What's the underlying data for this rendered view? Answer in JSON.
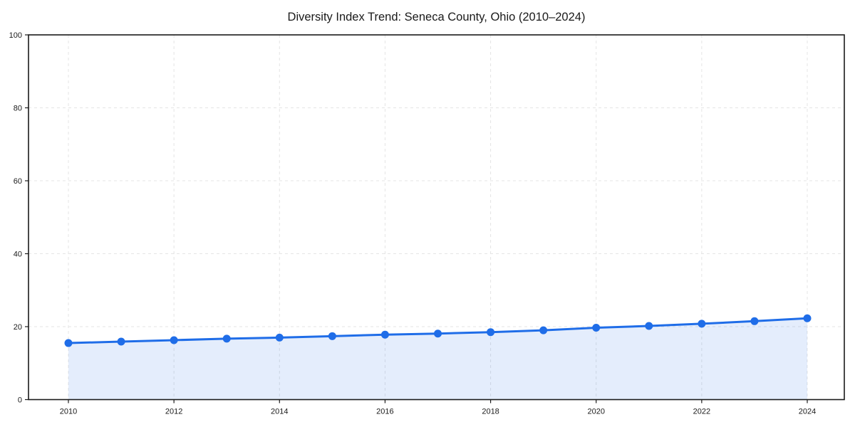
{
  "figure": {
    "background": "#ffffff"
  },
  "chart_data": {
    "type": "line",
    "title": "Diversity Index Trend: Seneca County, Ohio (2010–2024)",
    "x": [
      2010,
      2011,
      2012,
      2013,
      2014,
      2015,
      2016,
      2017,
      2018,
      2019,
      2020,
      2021,
      2022,
      2023,
      2024
    ],
    "series": [
      {
        "name": "Diversity Index",
        "values": [
          15.5,
          15.9,
          16.3,
          16.7,
          17.0,
          17.4,
          17.8,
          18.1,
          18.5,
          19.0,
          19.7,
          20.2,
          20.8,
          21.5,
          22.3
        ]
      }
    ],
    "xlabel": "",
    "ylabel": "",
    "ylim": [
      0,
      100
    ],
    "yticks": [
      0,
      20,
      40,
      60,
      80,
      100
    ],
    "xticks": [
      2010,
      2012,
      2014,
      2016,
      2018,
      2020,
      2022,
      2024
    ],
    "grid": "dashed, both axes, even-year verticals",
    "legend": "none",
    "marker": "circle",
    "area_fill": true,
    "colors": {
      "line": "#1f6de8",
      "marker": "#1f6de8",
      "area": "#1f6de8",
      "area_opacity": 0.12,
      "grid": "#e4e4e4",
      "axis": "#1a1a1a",
      "text": "#1a1a1a",
      "background": "#ffffff"
    }
  }
}
